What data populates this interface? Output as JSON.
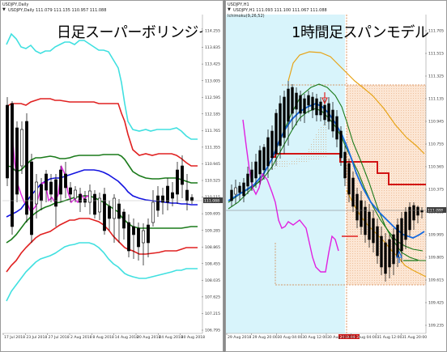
{
  "left_chart": {
    "symbol_label": "USDJPY,Daily",
    "ohlc": "USDJPY,Daily  111.079 111.135 110.957 111.088",
    "title": "日足スーパーボリンジャー",
    "current_price": "111.088",
    "y_ticks": [
      "114.255",
      "113.835",
      "113.425",
      "113.005",
      "112.595",
      "112.185",
      "111.765",
      "111.355",
      "110.945",
      "110.525",
      "110.115",
      "109.695",
      "109.285",
      "108.865",
      "108.455",
      "108.035",
      "107.625",
      "107.215",
      "106.795"
    ],
    "x_ticks": [
      "17 Jul 2018",
      "23 Jul 2018",
      "27 Jul 2018",
      "2 Aug 2018",
      "8 Aug 2018",
      "14 Aug 2018",
      "20 Aug 2018",
      "24 Aug 2018",
      "30 Aug 2018"
    ],
    "colors": {
      "outer": "#40e0e0",
      "mid": "#e02020",
      "inner": "#1a7a1a",
      "base": "#1414e0",
      "lag": "#e020e0",
      "bull": "#ffffff",
      "bear": "#000000"
    }
  },
  "right_chart": {
    "symbol_label": "USDJPY,H1",
    "ohlc": "USDJPY,H1  111.093 111.100 111.067 111.088",
    "indicator": "Ichimoku(9,26,52)",
    "title": "1時間足スパンモデル",
    "current_price": "111.088",
    "y_ticks": [
      "111.705",
      "111.515",
      "111.325",
      "111.135",
      "110.945",
      "110.755",
      "110.565",
      "110.375",
      "110.185",
      "109.995",
      "109.805",
      "109.615",
      "109.425",
      "109.235"
    ],
    "x_ticks": [
      "29 Aug 2018",
      "29 Aug 20:00",
      "30 Aug 04:00",
      "30 Aug 12:00",
      "30 Aug 20:00",
      "31 Aug 04:00",
      "31 Aug 12:00",
      "31 Aug 20:00"
    ],
    "cursor_date": "2018.08.30 12:00",
    "colors": {
      "bg": "#d8f4fb",
      "span_fill": "#fce3cf",
      "upper": "#e7a316",
      "base_red": "#d21414",
      "green": "#1a7a1a",
      "blue": "#1469e0",
      "lag": "#e020e0",
      "red_mark": "#e02020",
      "blue_mark": "#1469e0"
    }
  }
}
